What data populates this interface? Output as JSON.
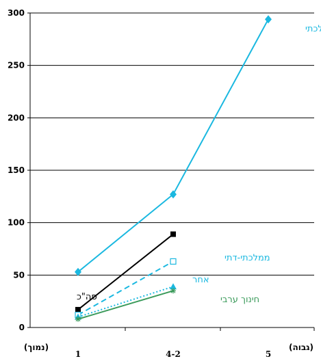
{
  "chart_data": {
    "type": "line",
    "categories": [
      "1",
      "4-2",
      "5"
    ],
    "x_left_label": "(נמוך)",
    "x_right_label": "(גבוה)",
    "ylim": [
      0,
      300
    ],
    "yticks": [
      "0",
      "50",
      "100",
      "150",
      "200",
      "250",
      "300"
    ],
    "grid": true,
    "series": [
      {
        "name": "ממלכתי",
        "values": [
          53,
          127,
          294
        ],
        "color": "#1ab8e0",
        "dash": "solid",
        "marker": "diamond"
      },
      {
        "name": "סה\"כ",
        "values": [
          17,
          89,
          null
        ],
        "color": "#000000",
        "dash": "solid",
        "marker": "square"
      },
      {
        "name": "ממלכתי-דתי",
        "values": [
          12,
          63,
          null
        ],
        "color": "#1ab8e0",
        "dash": "dashed",
        "marker": "open-square"
      },
      {
        "name": "אחר",
        "values": [
          10,
          39,
          null
        ],
        "color": "#1ab8e0",
        "dash": "dotted",
        "marker": "triangle"
      },
      {
        "name": "חינוך ערבי",
        "values": [
          8,
          35,
          null
        ],
        "color": "#3a9a5a",
        "dash": "solid",
        "marker": "asterisk"
      }
    ]
  }
}
